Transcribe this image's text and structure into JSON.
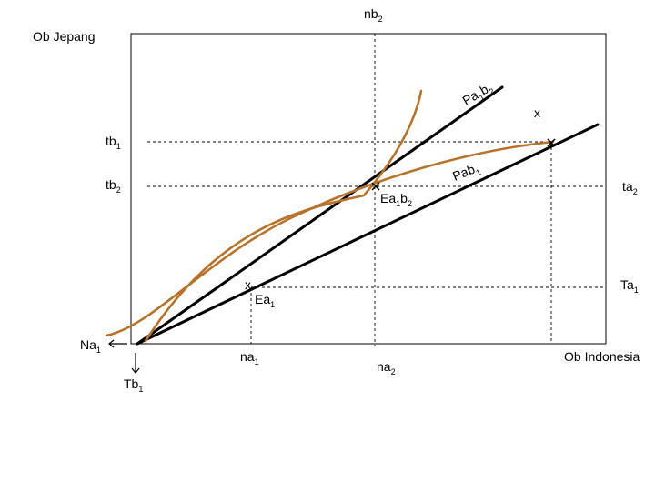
{
  "labels": {
    "nb": "nb",
    "nb_sub": "2",
    "ob_jepang": "Ob Jepang",
    "ob_indonesia": "Ob Indonesia",
    "pa1b2_a": "Pa",
    "pa1b2_s1": "1",
    "pa1b2_b": "b",
    "pa1b2_s2": "2",
    "x_top": "x",
    "tb1": "tb",
    "tb1_sub": "1",
    "tb2": "tb",
    "tb2_sub": "2",
    "pab1": "Pab",
    "pab1_sub": "1",
    "ta2": "ta",
    "ta2_sub": "2",
    "ea1b2_a": "Ea",
    "ea1b2_s1": "1",
    "ea1b2_b": "b",
    "ea1b2_s2": "2",
    "x_mid": "x",
    "ea1": "Ea",
    "ea1_sub": "1",
    "ta1": "Ta",
    "ta1_sub": "1",
    "na1_left": "Na",
    "na1_left_sub": "1",
    "na1": "na",
    "na1_sub": "1",
    "na2": "na",
    "na2_sub": "2",
    "tb1_bottom": "Tb",
    "tb1_bottom_sub": "1"
  },
  "colors": {
    "curve": "#b8732a",
    "line": "#000000"
  }
}
